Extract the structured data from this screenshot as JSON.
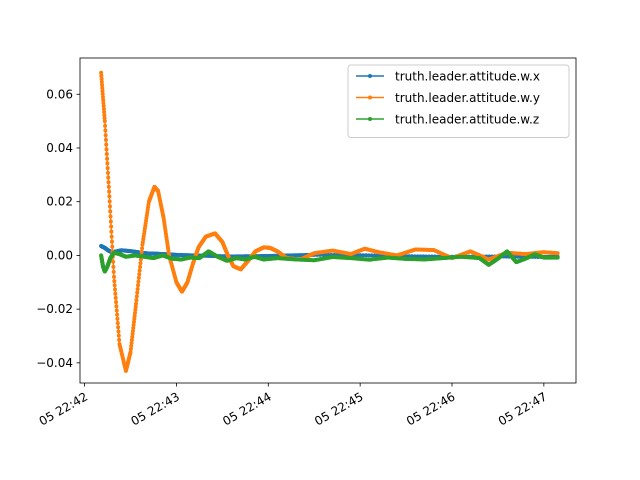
{
  "chart_data": {
    "type": "line",
    "title": "",
    "xlabel": "",
    "ylabel": "",
    "x_unit": "minutes after 05 22:42",
    "xlim": [
      -0.05,
      5.35
    ],
    "ylim": [
      -0.0475,
      0.0735
    ],
    "x_ticks": [
      {
        "value": 0,
        "label": "05 22:42"
      },
      {
        "value": 1,
        "label": "05 22:43"
      },
      {
        "value": 2,
        "label": "05 22:44"
      },
      {
        "value": 3,
        "label": "05 22:45"
      },
      {
        "value": 4,
        "label": "05 22:46"
      },
      {
        "value": 5,
        "label": "05 22:47"
      }
    ],
    "y_ticks": [
      {
        "value": -0.04,
        "label": "−0.04"
      },
      {
        "value": -0.02,
        "label": "−0.02"
      },
      {
        "value": 0.0,
        "label": "0.00"
      },
      {
        "value": 0.02,
        "label": "0.02"
      },
      {
        "value": 0.04,
        "label": "0.04"
      },
      {
        "value": 0.06,
        "label": "0.06"
      }
    ],
    "legend_position": "top-right",
    "series": [
      {
        "name": "truth.leader.attitude.w.x",
        "color": "#1f77b4",
        "x": [
          0.18,
          0.22,
          0.26,
          0.3,
          0.35,
          0.4,
          0.5,
          0.6,
          0.7,
          0.8,
          0.9,
          1.0,
          1.2,
          1.4,
          1.6,
          1.8,
          2.0,
          2.2,
          2.5,
          3.0,
          3.5,
          4.0,
          4.5,
          5.0,
          5.15
        ],
        "y": [
          0.0035,
          0.0028,
          0.0018,
          0.0012,
          0.0015,
          0.0019,
          0.0016,
          0.0011,
          0.0007,
          0.0006,
          0.0004,
          0.0002,
          0.0,
          -0.0002,
          -0.0004,
          -0.0003,
          -0.0002,
          0.0,
          0.0002,
          0.0001,
          -0.0003,
          -0.0005,
          -0.0004,
          -0.0006,
          -0.0005
        ]
      },
      {
        "name": "truth.leader.attitude.w.y",
        "color": "#ff7f0e",
        "x": [
          0.18,
          0.22,
          0.27,
          0.32,
          0.38,
          0.45,
          0.5,
          0.56,
          0.63,
          0.7,
          0.76,
          0.8,
          0.86,
          0.92,
          1.0,
          1.06,
          1.12,
          1.18,
          1.24,
          1.32,
          1.42,
          1.5,
          1.56,
          1.62,
          1.7,
          1.78,
          1.86,
          1.95,
          2.02,
          2.1,
          2.2,
          2.35,
          2.5,
          2.7,
          2.9,
          3.05,
          3.2,
          3.4,
          3.6,
          3.8,
          4.0,
          4.2,
          4.4,
          4.6,
          4.8,
          5.0,
          5.15
        ],
        "y": [
          0.068,
          0.05,
          0.022,
          -0.008,
          -0.033,
          -0.043,
          -0.036,
          -0.018,
          0.004,
          0.02,
          0.0255,
          0.024,
          0.014,
          0.0,
          -0.01,
          -0.0135,
          -0.01,
          -0.003,
          0.003,
          0.007,
          0.0082,
          0.005,
          0.0,
          -0.004,
          -0.0052,
          -0.002,
          0.0015,
          0.003,
          0.0028,
          0.0015,
          -0.001,
          -0.0015,
          0.0008,
          0.0018,
          0.0005,
          0.0025,
          0.0012,
          0.0,
          0.0022,
          0.002,
          -0.001,
          0.0015,
          -0.0015,
          0.001,
          0.0005,
          0.0012,
          0.0008
        ]
      },
      {
        "name": "truth.leader.attitude.w.z",
        "color": "#2ca02c",
        "x": [
          0.18,
          0.2,
          0.22,
          0.25,
          0.28,
          0.32,
          0.38,
          0.45,
          0.55,
          0.65,
          0.75,
          0.85,
          0.95,
          1.05,
          1.15,
          1.25,
          1.35,
          1.45,
          1.55,
          1.65,
          1.75,
          1.85,
          1.95,
          2.1,
          2.3,
          2.5,
          2.7,
          2.9,
          3.1,
          3.3,
          3.5,
          3.7,
          3.9,
          4.1,
          4.3,
          4.4,
          4.5,
          4.6,
          4.7,
          4.8,
          4.9,
          5.0,
          5.15
        ],
        "y": [
          0.0,
          -0.004,
          -0.006,
          -0.004,
          -0.001,
          0.001,
          0.0005,
          -0.0005,
          0.0,
          -0.0005,
          -0.001,
          0.0,
          -0.0012,
          -0.0015,
          -0.0008,
          -0.001,
          0.0015,
          -0.0005,
          -0.002,
          -0.001,
          -0.0015,
          -0.0005,
          -0.0015,
          -0.001,
          -0.0015,
          -0.0018,
          -0.0006,
          -0.001,
          -0.0016,
          -0.0008,
          -0.0013,
          -0.0015,
          -0.001,
          -0.0005,
          -0.001,
          -0.0035,
          -0.0012,
          0.0015,
          -0.0025,
          -0.0012,
          0.0004,
          -0.0008,
          -0.0008
        ]
      }
    ]
  }
}
